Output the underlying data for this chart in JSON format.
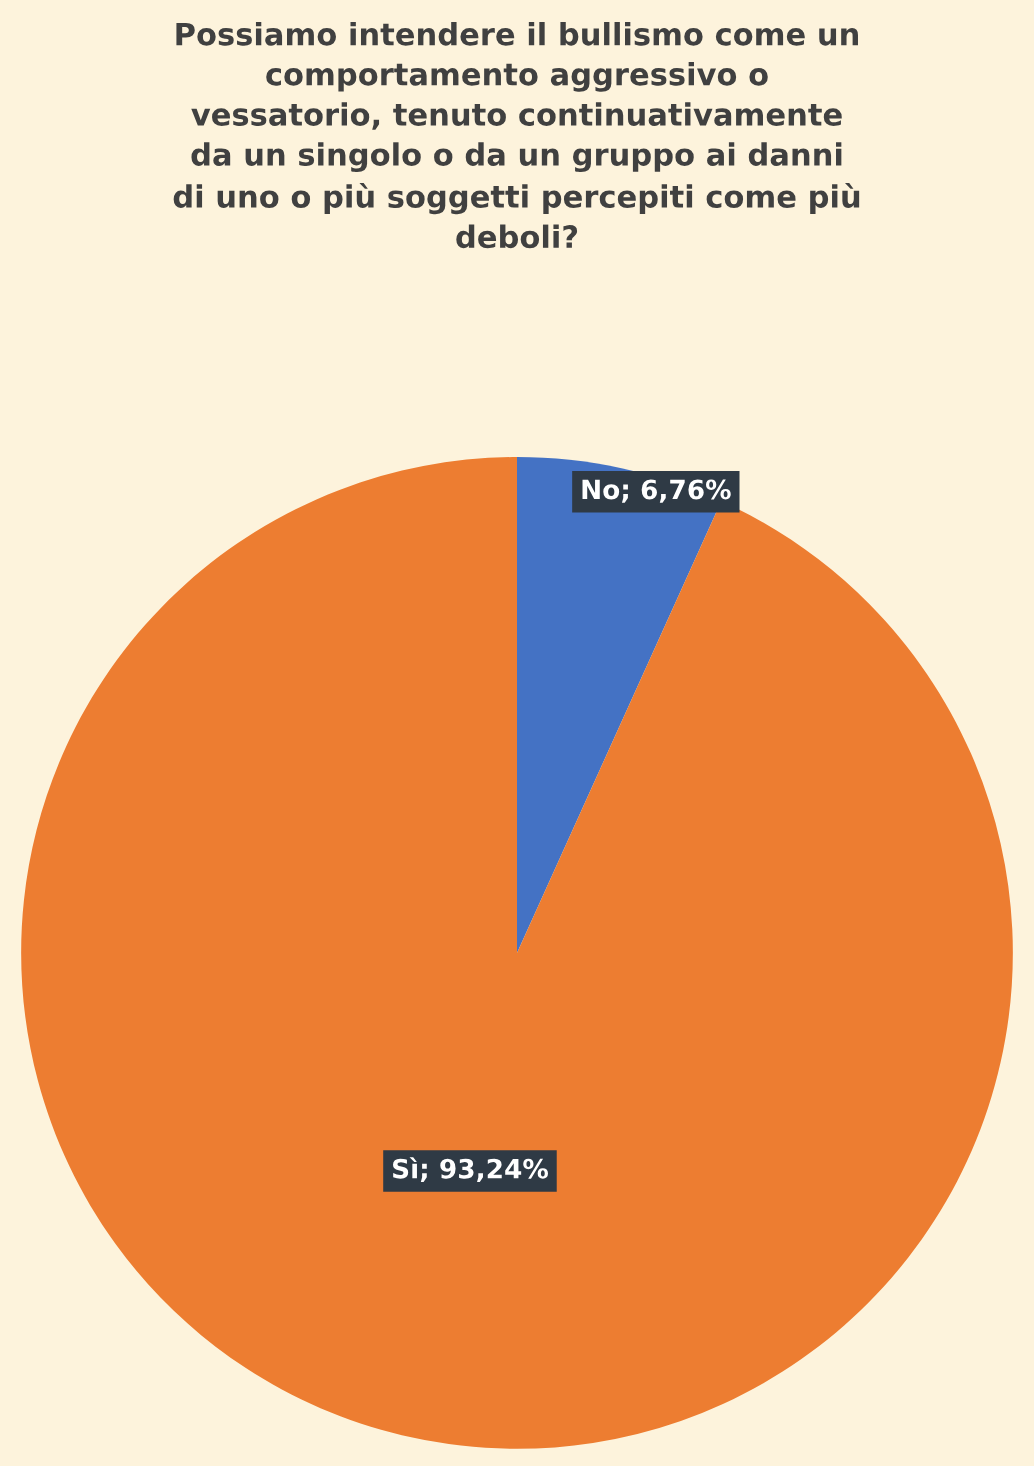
{
  "chart_data": {
    "type": "pie",
    "title": "Possiamo intendere il bullismo come un\ncomportamento aggressivo o\nvessatorio, tenuto continuativamente\nda un singolo o da un gruppo ai danni\ndi uno o più soggetti percepiti come più\ndeboli?",
    "categories": [
      "No",
      "Sì"
    ],
    "values": [
      6.76,
      93.24
    ],
    "colors": [
      "#4472c4",
      "#ed7d31"
    ],
    "value_labels": [
      "6,76%",
      "93,24%"
    ],
    "legend": false
  }
}
